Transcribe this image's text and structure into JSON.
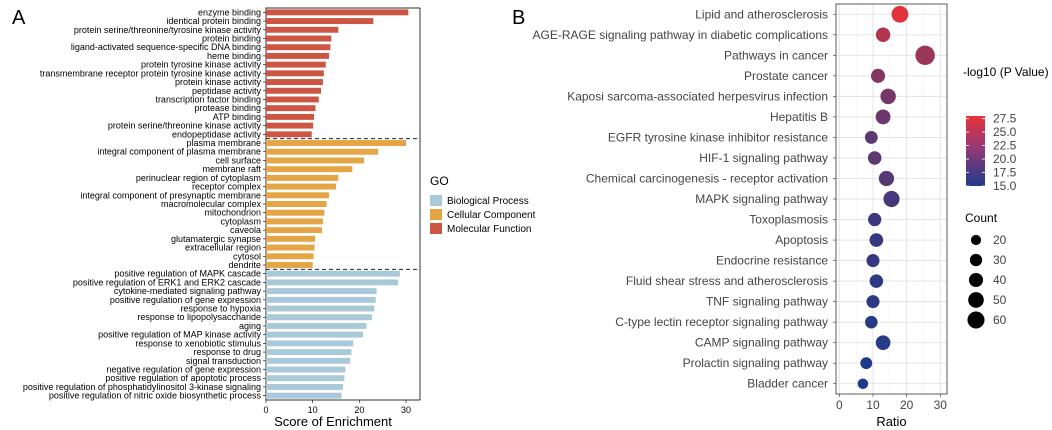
{
  "chart_data": [
    {
      "type": "bar",
      "panel": "A",
      "orientation": "horizontal",
      "xlabel": "Score of Enrichment",
      "xlim": [
        0,
        33
      ],
      "xticks": [
        0,
        10,
        20,
        30
      ],
      "legend_title": "GO",
      "legend_position": "right",
      "series": [
        {
          "name": "Molecular Function",
          "color": "#cc5544",
          "categories": [
            "enzyme binding",
            "identical protein binding",
            "protein serine/threonine/tyrosine kinase activity",
            "protein binding",
            "ligand-activated sequence-specific DNA binding",
            "heme binding",
            "protein tyrosine kinase activity",
            "transmembrane receptor protein tyrosine kinase activity",
            "protein kinase activity",
            "peptidase activity",
            "transcription factor binding",
            "protease binding",
            "ATP binding",
            "protein serine/threonine kinase activity",
            "endopeptidase activity"
          ],
          "values": [
            30.5,
            23,
            15.5,
            14,
            13.8,
            13.5,
            12.8,
            12.4,
            12.2,
            11.8,
            11.3,
            10.6,
            10.3,
            10.1,
            9.8
          ]
        },
        {
          "name": "Cellular Component",
          "color": "#e6a544",
          "categories": [
            "plasma membrane",
            "integral component of plasma membrane",
            "cell surface",
            "membrane raft",
            "perinuclear region of cytoplasm",
            "receptor complex",
            "integral component of presynaptic membrane",
            "macromolecular complex",
            "mitochondrion",
            "cytoplasm",
            "caveola",
            "glutamatergic synapse",
            "extracellular region",
            "cytosol",
            "dendrite"
          ],
          "values": [
            30,
            24,
            21,
            18.5,
            15.5,
            15,
            13.5,
            13,
            12.5,
            12.2,
            12,
            10.5,
            10.4,
            10.2,
            10
          ]
        },
        {
          "name": "Biological Process",
          "color": "#a9c8d8",
          "categories": [
            "positive regulation of MAPK cascade",
            "positive regulation of ERK1 and ERK2 cascade",
            "cytokine-mediated signaling pathway",
            "positive regulation of gene expression",
            "response to hypoxia",
            "response to lipopolysaccharide",
            "aging",
            "positive regulation of MAP kinase activity",
            "response to xenobiotic stimulus",
            "response to drug",
            "signal transduction",
            "negative regulation of gene expression",
            "positive regulation of apoptotic process",
            "positive regulation of phosphatidylinositol 3-kinase signaling",
            "positive regulation of nitric oxide biosynthetic process"
          ],
          "values": [
            28.7,
            28.3,
            23.7,
            23.5,
            23.2,
            22.7,
            21.5,
            20.8,
            18.7,
            18.3,
            18,
            17,
            16.8,
            16.5,
            16.2
          ]
        }
      ]
    },
    {
      "type": "scatter",
      "panel": "B",
      "xlabel": "Ratio",
      "xlim": [
        -1,
        32
      ],
      "xticks": [
        0,
        10,
        20,
        30
      ],
      "grid": true,
      "color_legend": {
        "title": "-log10 (P Value)",
        "ticks": [
          27.5,
          25.0,
          22.5,
          20.0,
          17.5,
          15.0
        ],
        "min": 15.0,
        "max": 28.0,
        "low_color": "#1f3a8a",
        "high_color": "#e8333a"
      },
      "size_legend": {
        "title": "Count",
        "values": [
          20,
          30,
          40,
          50,
          60
        ]
      },
      "points": [
        {
          "label": "Lipid and atherosclerosis",
          "ratio": 18,
          "pvalue": 27.5,
          "count": 42
        },
        {
          "label": "AGE-RAGE signaling pathway in diabetic complications",
          "ratio": 13,
          "pvalue": 24.5,
          "count": 29
        },
        {
          "label": "Pathways in cancer",
          "ratio": 25.5,
          "pvalue": 23,
          "count": 60
        },
        {
          "label": "Prostate cancer",
          "ratio": 11.5,
          "pvalue": 21.5,
          "count": 27
        },
        {
          "label": "Kaposi sarcoma-associated herpesvirus infection",
          "ratio": 14.5,
          "pvalue": 20.5,
          "count": 34
        },
        {
          "label": "Hepatitis B",
          "ratio": 13,
          "pvalue": 20,
          "count": 31
        },
        {
          "label": "EGFR tyrosine kinase inhibitor resistance",
          "ratio": 9.5,
          "pvalue": 19,
          "count": 21
        },
        {
          "label": "HIF-1 signaling pathway",
          "ratio": 10.5,
          "pvalue": 19,
          "count": 24
        },
        {
          "label": "Chemical carcinogenesis - receptor activation",
          "ratio": 14,
          "pvalue": 18.5,
          "count": 33
        },
        {
          "label": "MAPK signaling pathway",
          "ratio": 15.5,
          "pvalue": 17.5,
          "count": 38
        },
        {
          "label": "Toxoplasmosis",
          "ratio": 10.5,
          "pvalue": 17,
          "count": 23
        },
        {
          "label": "Apoptosis",
          "ratio": 11,
          "pvalue": 16.5,
          "count": 25
        },
        {
          "label": "Endocrine resistance",
          "ratio": 10,
          "pvalue": 16.5,
          "count": 22
        },
        {
          "label": "Fluid shear stress and atherosclerosis",
          "ratio": 11,
          "pvalue": 16,
          "count": 24
        },
        {
          "label": "TNF signaling pathway",
          "ratio": 10,
          "pvalue": 16,
          "count": 22
        },
        {
          "label": "C-type lectin receptor signaling pathway",
          "ratio": 9.5,
          "pvalue": 15.5,
          "count": 20
        },
        {
          "label": "CAMP signaling pathway",
          "ratio": 13,
          "pvalue": 15.5,
          "count": 30
        },
        {
          "label": "Prolactin signaling pathway",
          "ratio": 8,
          "pvalue": 15,
          "count": 17
        },
        {
          "label": "Bladder cancer",
          "ratio": 7,
          "pvalue": 15,
          "count": 12
        }
      ]
    }
  ],
  "figure": {
    "panel_a_letter": "A",
    "panel_b_letter": "B"
  }
}
